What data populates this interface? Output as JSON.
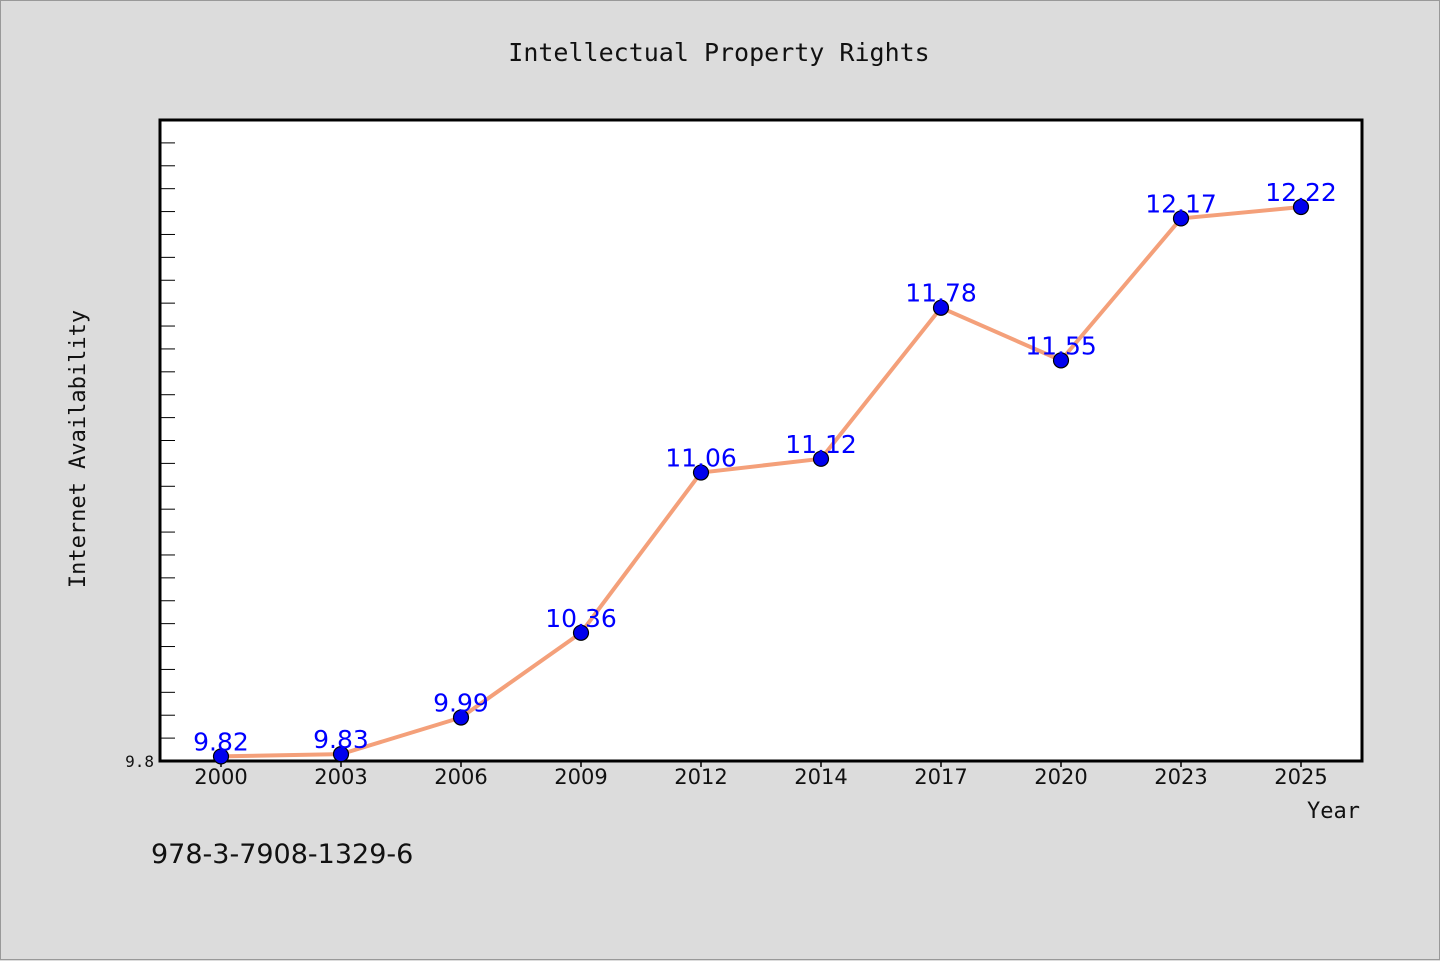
{
  "chart_data": {
    "type": "line",
    "title": "Intellectual Property Rights",
    "xlabel": "Year",
    "ylabel": "Internet Availability",
    "categories": [
      "2000",
      "2003",
      "2006",
      "2009",
      "2012",
      "2014",
      "2017",
      "2020",
      "2023",
      "2025"
    ],
    "series": [
      {
        "values": [
          9.82,
          9.83,
          9.99,
          10.36,
          11.06,
          11.12,
          11.78,
          11.55,
          12.17,
          12.22
        ],
        "labels": [
          "9.82",
          "9.83",
          "9.99",
          "10.36",
          "11.06",
          "11.12",
          "11.78",
          "11.55",
          "12.17",
          "12.22"
        ]
      }
    ],
    "ylim": [
      9.8,
      12.6
    ],
    "yticks_labeled": [
      "9.8"
    ],
    "grid": false,
    "colors": {
      "line": "#f4a07a",
      "marker": "#0000ee",
      "marker_edge": "#000000",
      "data_label": "#0000ff"
    }
  },
  "footer": {
    "isbn": "978-3-7908-1329-6"
  }
}
